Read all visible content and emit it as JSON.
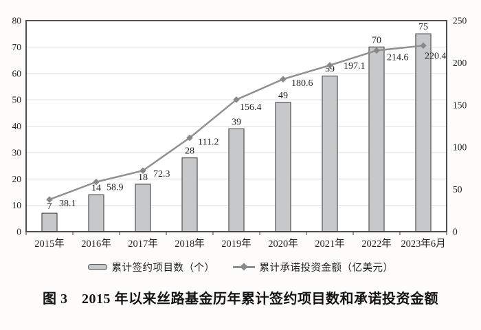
{
  "figure": {
    "caption": "图 3　2015 年以来丝路基金历年累计签约项目数和承诺投资金额"
  },
  "chart_data": {
    "type": "bar",
    "subtype": "bar+line combo, dual axis",
    "categories": [
      "2015年",
      "2016年",
      "2017年",
      "2018年",
      "2019年",
      "2020年",
      "2021年",
      "2022年",
      "2023年6月"
    ],
    "series": [
      {
        "name": "累计签约项目数（个）",
        "type": "bar",
        "axis": "left",
        "values": [
          7,
          14,
          18,
          28,
          39,
          49,
          59,
          70,
          75
        ]
      },
      {
        "name": "累计承诺投资金额（亿美元）",
        "type": "line",
        "axis": "right",
        "values": [
          38.1,
          58.9,
          72.3,
          111.2,
          156.4,
          180.6,
          197.1,
          214.6,
          220.4
        ]
      }
    ],
    "left_axis": {
      "min": 0,
      "max": 80,
      "step": 10,
      "ticks": [
        "0",
        "10",
        "20",
        "30",
        "40",
        "50",
        "60",
        "70",
        "80"
      ]
    },
    "right_axis": {
      "min": 0,
      "max": 250,
      "step": 50,
      "ticks": [
        "0",
        "50",
        "100",
        "150",
        "200",
        "250"
      ]
    },
    "grid": "horizontal",
    "legend_position": "bottom",
    "colors": {
      "bar_fill": "#c7c8c9",
      "bar_stroke": "#595a5c",
      "line": "#8f9092",
      "marker": "#88898c",
      "grid": "#dedede",
      "frame": "#3c3c3c",
      "text": "#1f1f1f",
      "background": "#fdfcfa"
    }
  }
}
